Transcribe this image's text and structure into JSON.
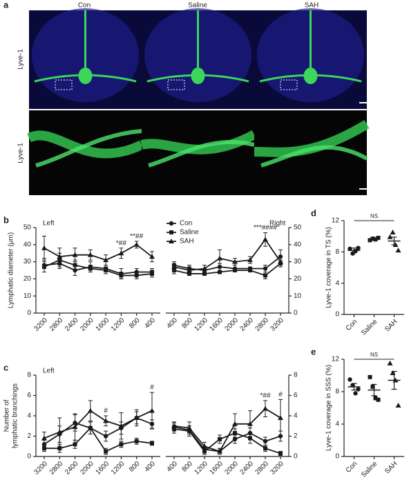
{
  "images": {
    "label": "a",
    "columns": [
      "Con",
      "Saline",
      "SAH"
    ],
    "rows": [
      "Lyve-1",
      "Lyve-1"
    ]
  },
  "chart_data": [
    {
      "type": "line",
      "label": "b",
      "side_label": "Left",
      "y_label": [
        "Lymphatic diameter (μm)"
      ],
      "categories": [
        "3200",
        "2800",
        "2400",
        "2000",
        "1600",
        "1200",
        "800",
        "400"
      ],
      "ylim": [
        0,
        50
      ],
      "yticks": [
        0,
        10,
        20,
        30,
        40,
        50
      ],
      "series": [
        {
          "color": "#1a1a1a",
          "values": [
            28,
            29,
            25,
            27,
            26,
            23,
            24,
            24
          ],
          "errors": [
            4,
            3,
            3,
            3,
            2,
            3,
            2,
            2
          ]
        },
        {
          "color": "#1a1a1a",
          "values": [
            27,
            31,
            28,
            26,
            25,
            22,
            22,
            23
          ],
          "errors": [
            3,
            4,
            3,
            2,
            2,
            2,
            2,
            2
          ]
        },
        {
          "color": "#1a1a1a",
          "values": [
            38,
            33,
            34,
            34,
            31,
            35,
            40,
            33
          ],
          "errors": [
            7,
            5,
            4,
            3,
            3,
            3,
            2,
            3
          ]
        }
      ],
      "annotations": [
        {
          "text": "*##",
          "x": "1200"
        },
        {
          "text": "**##",
          "x": "800"
        }
      ]
    },
    {
      "type": "line",
      "side_label": "Right",
      "categories": [
        "400",
        "800",
        "1200",
        "1600",
        "2000",
        "2400",
        "2800",
        "3200"
      ],
      "ylim": [
        0,
        50
      ],
      "yticks": [
        0,
        10,
        20,
        30,
        40,
        50
      ],
      "legend": "top-left",
      "series": [
        {
          "name": "Con",
          "color": "#1a1a1a",
          "values": [
            28,
            26,
            25,
            27,
            26,
            26,
            26,
            33
          ],
          "errors": [
            2,
            2,
            1,
            2,
            2,
            1,
            2,
            4
          ]
        },
        {
          "name": "Saline",
          "color": "#1a1a1a",
          "values": [
            25,
            23,
            23,
            24,
            25,
            25,
            22,
            29
          ],
          "errors": [
            2,
            1,
            1,
            1,
            1,
            1,
            2,
            2
          ]
        },
        {
          "name": "SAH",
          "color": "#1a1a1a",
          "values": [
            27,
            25,
            26,
            32,
            30,
            31,
            43,
            30
          ],
          "errors": [
            2,
            2,
            2,
            5,
            2,
            2,
            4,
            3
          ]
        }
      ],
      "annotations": [
        {
          "text": "***####",
          "x": "2800"
        }
      ]
    },
    {
      "type": "line",
      "label": "c",
      "side_label": "Left",
      "y_label": [
        "Number of",
        "lymphatic branchings"
      ],
      "categories": [
        "3200",
        "2800",
        "2400",
        "2000",
        "1600",
        "1200",
        "800",
        "400"
      ],
      "ylim": [
        0,
        8
      ],
      "yticks": [
        0,
        2,
        4,
        6,
        8
      ],
      "series": [
        {
          "color": "#1a1a1a",
          "values": [
            1.2,
            2.2,
            3.3,
            2.8,
            2.0,
            2.8,
            3.8,
            3.2
          ],
          "errors": [
            0.4,
            0.8,
            0.8,
            0.6,
            0.5,
            0.6,
            0.6,
            0.4
          ]
        },
        {
          "color": "#1a1a1a",
          "values": [
            0.8,
            0.8,
            1.2,
            2.8,
            0.5,
            1.2,
            1.5,
            1.3
          ],
          "errors": [
            0.3,
            0.4,
            0.4,
            0.6,
            0.3,
            0.3,
            0.3,
            0.2
          ]
        },
        {
          "color": "#1a1a1a",
          "values": [
            1.8,
            2.4,
            2.9,
            4.5,
            3.5,
            3.0,
            3.8,
            4.5
          ],
          "errors": [
            0.6,
            1.4,
            1.3,
            1.0,
            0.5,
            1.3,
            0.8,
            1.8
          ]
        }
      ],
      "annotations": [
        {
          "text": "#",
          "x": "1600"
        },
        {
          "text": "#",
          "x": "400"
        }
      ]
    },
    {
      "type": "line",
      "categories": [
        "400",
        "800",
        "1200",
        "1600",
        "2000",
        "2400",
        "2800",
        "3200"
      ],
      "ylim": [
        0,
        8
      ],
      "yticks": [
        0,
        2,
        4,
        6,
        8
      ],
      "series": [
        {
          "color": "#1a1a1a",
          "values": [
            2.9,
            2.6,
            0.7,
            0.5,
            1.7,
            2.3,
            1.5,
            2.0
          ],
          "errors": [
            0.4,
            0.4,
            0.3,
            0.3,
            0.4,
            0.5,
            0.4,
            0.5
          ]
        },
        {
          "color": "#1a1a1a",
          "values": [
            2.7,
            2.5,
            0.5,
            1.7,
            2.3,
            1.8,
            0.8,
            0.3
          ],
          "errors": [
            0.4,
            0.5,
            0.3,
            0.4,
            0.4,
            0.5,
            0.3,
            0.2
          ]
        },
        {
          "color": "#1a1a1a",
          "values": [
            3.0,
            2.8,
            1.0,
            0.5,
            3.2,
            3.2,
            4.7,
            3.8
          ],
          "errors": [
            0.4,
            0.6,
            0.4,
            0.3,
            1.0,
            1.3,
            0.8,
            1.8
          ]
        }
      ],
      "annotations": [
        {
          "text": "*##",
          "x": "2800"
        },
        {
          "text": "#",
          "x": "3200"
        }
      ]
    },
    {
      "type": "dot",
      "label": "d",
      "y_label": [
        "Lyve-1 coverage in TS (%)"
      ],
      "annotation": "NS",
      "categories": [
        "Con",
        "Saline",
        "SAH"
      ],
      "ylim": [
        0,
        12
      ],
      "yticks": [
        0,
        4,
        8,
        12
      ],
      "color": "#1a1a1a",
      "points": [
        [
          8.4,
          7.8,
          8.1,
          8.5
        ],
        [
          9.5,
          9.7,
          9.6,
          9.8
        ],
        [
          9.9,
          10.5,
          8.9,
          8.2
        ]
      ],
      "means": [
        8.2,
        9.65,
        9.4
      ],
      "errors": [
        0.3,
        0.1,
        0.5
      ]
    },
    {
      "type": "dot",
      "label": "e",
      "y_label": [
        "Lyve-1 coverage in SSS (%)"
      ],
      "annotation": "NS",
      "categories": [
        "Con",
        "Saline",
        "SAH"
      ],
      "ylim": [
        0,
        12
      ],
      "yticks": [
        0,
        4,
        8,
        12
      ],
      "color": "#1a1a1a",
      "points": [
        [
          9.5,
          8.8,
          7.8,
          8.3
        ],
        [
          9.8,
          8.6,
          7.2,
          7.0
        ],
        [
          11.5,
          10.3,
          9.4,
          6.3
        ]
      ],
      "means": [
        8.6,
        8.2,
        9.4
      ],
      "errors": [
        0.4,
        0.7,
        1.1
      ]
    }
  ]
}
